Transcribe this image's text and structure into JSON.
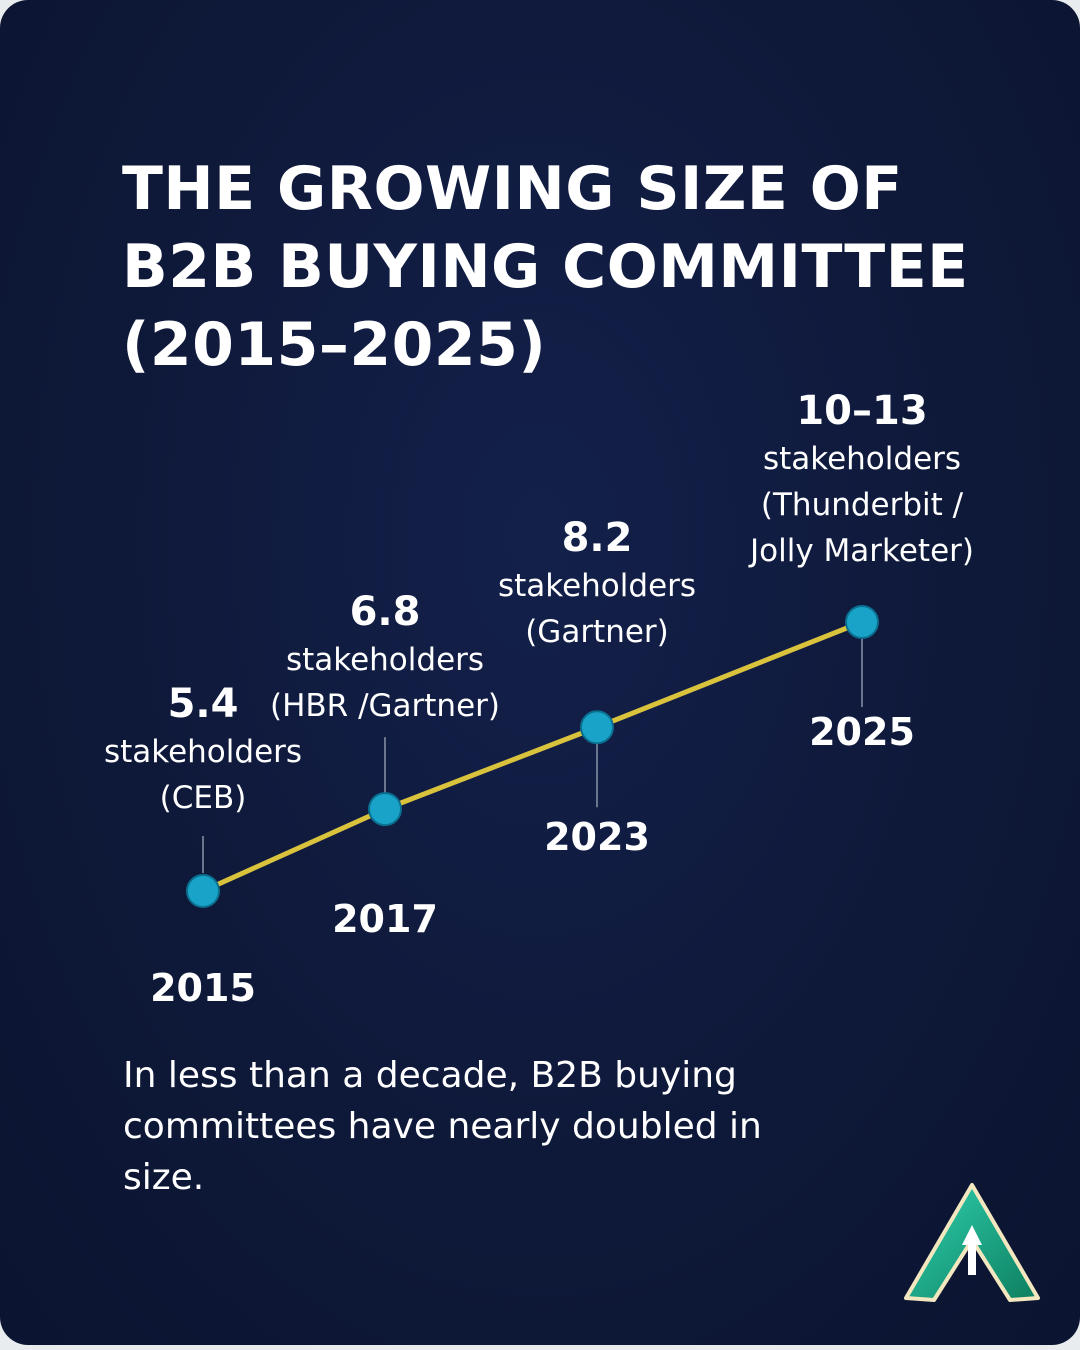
{
  "chart_data": {
    "type": "line",
    "title": "THE GROWING SIZE OF B2B BUYING COMMITTEE (2015–2025)",
    "categories": [
      "2015",
      "2017",
      "2023",
      "2025"
    ],
    "values": [
      5.4,
      6.8,
      8.2,
      10
    ],
    "value_labels": [
      "5.4",
      "6.8",
      "8.2",
      "10–13"
    ],
    "unit_label": "stakeholders",
    "sources": [
      "(CEB)",
      "(HBR /Gartner)",
      "(Gartner)",
      "(Thunderbit / Jolly Marketer)"
    ],
    "line_color": "#d9c23c",
    "marker_color": "#1aa3c8",
    "caption": "In less than a decade, B2B buying committees have nearly doubled in size."
  }
}
